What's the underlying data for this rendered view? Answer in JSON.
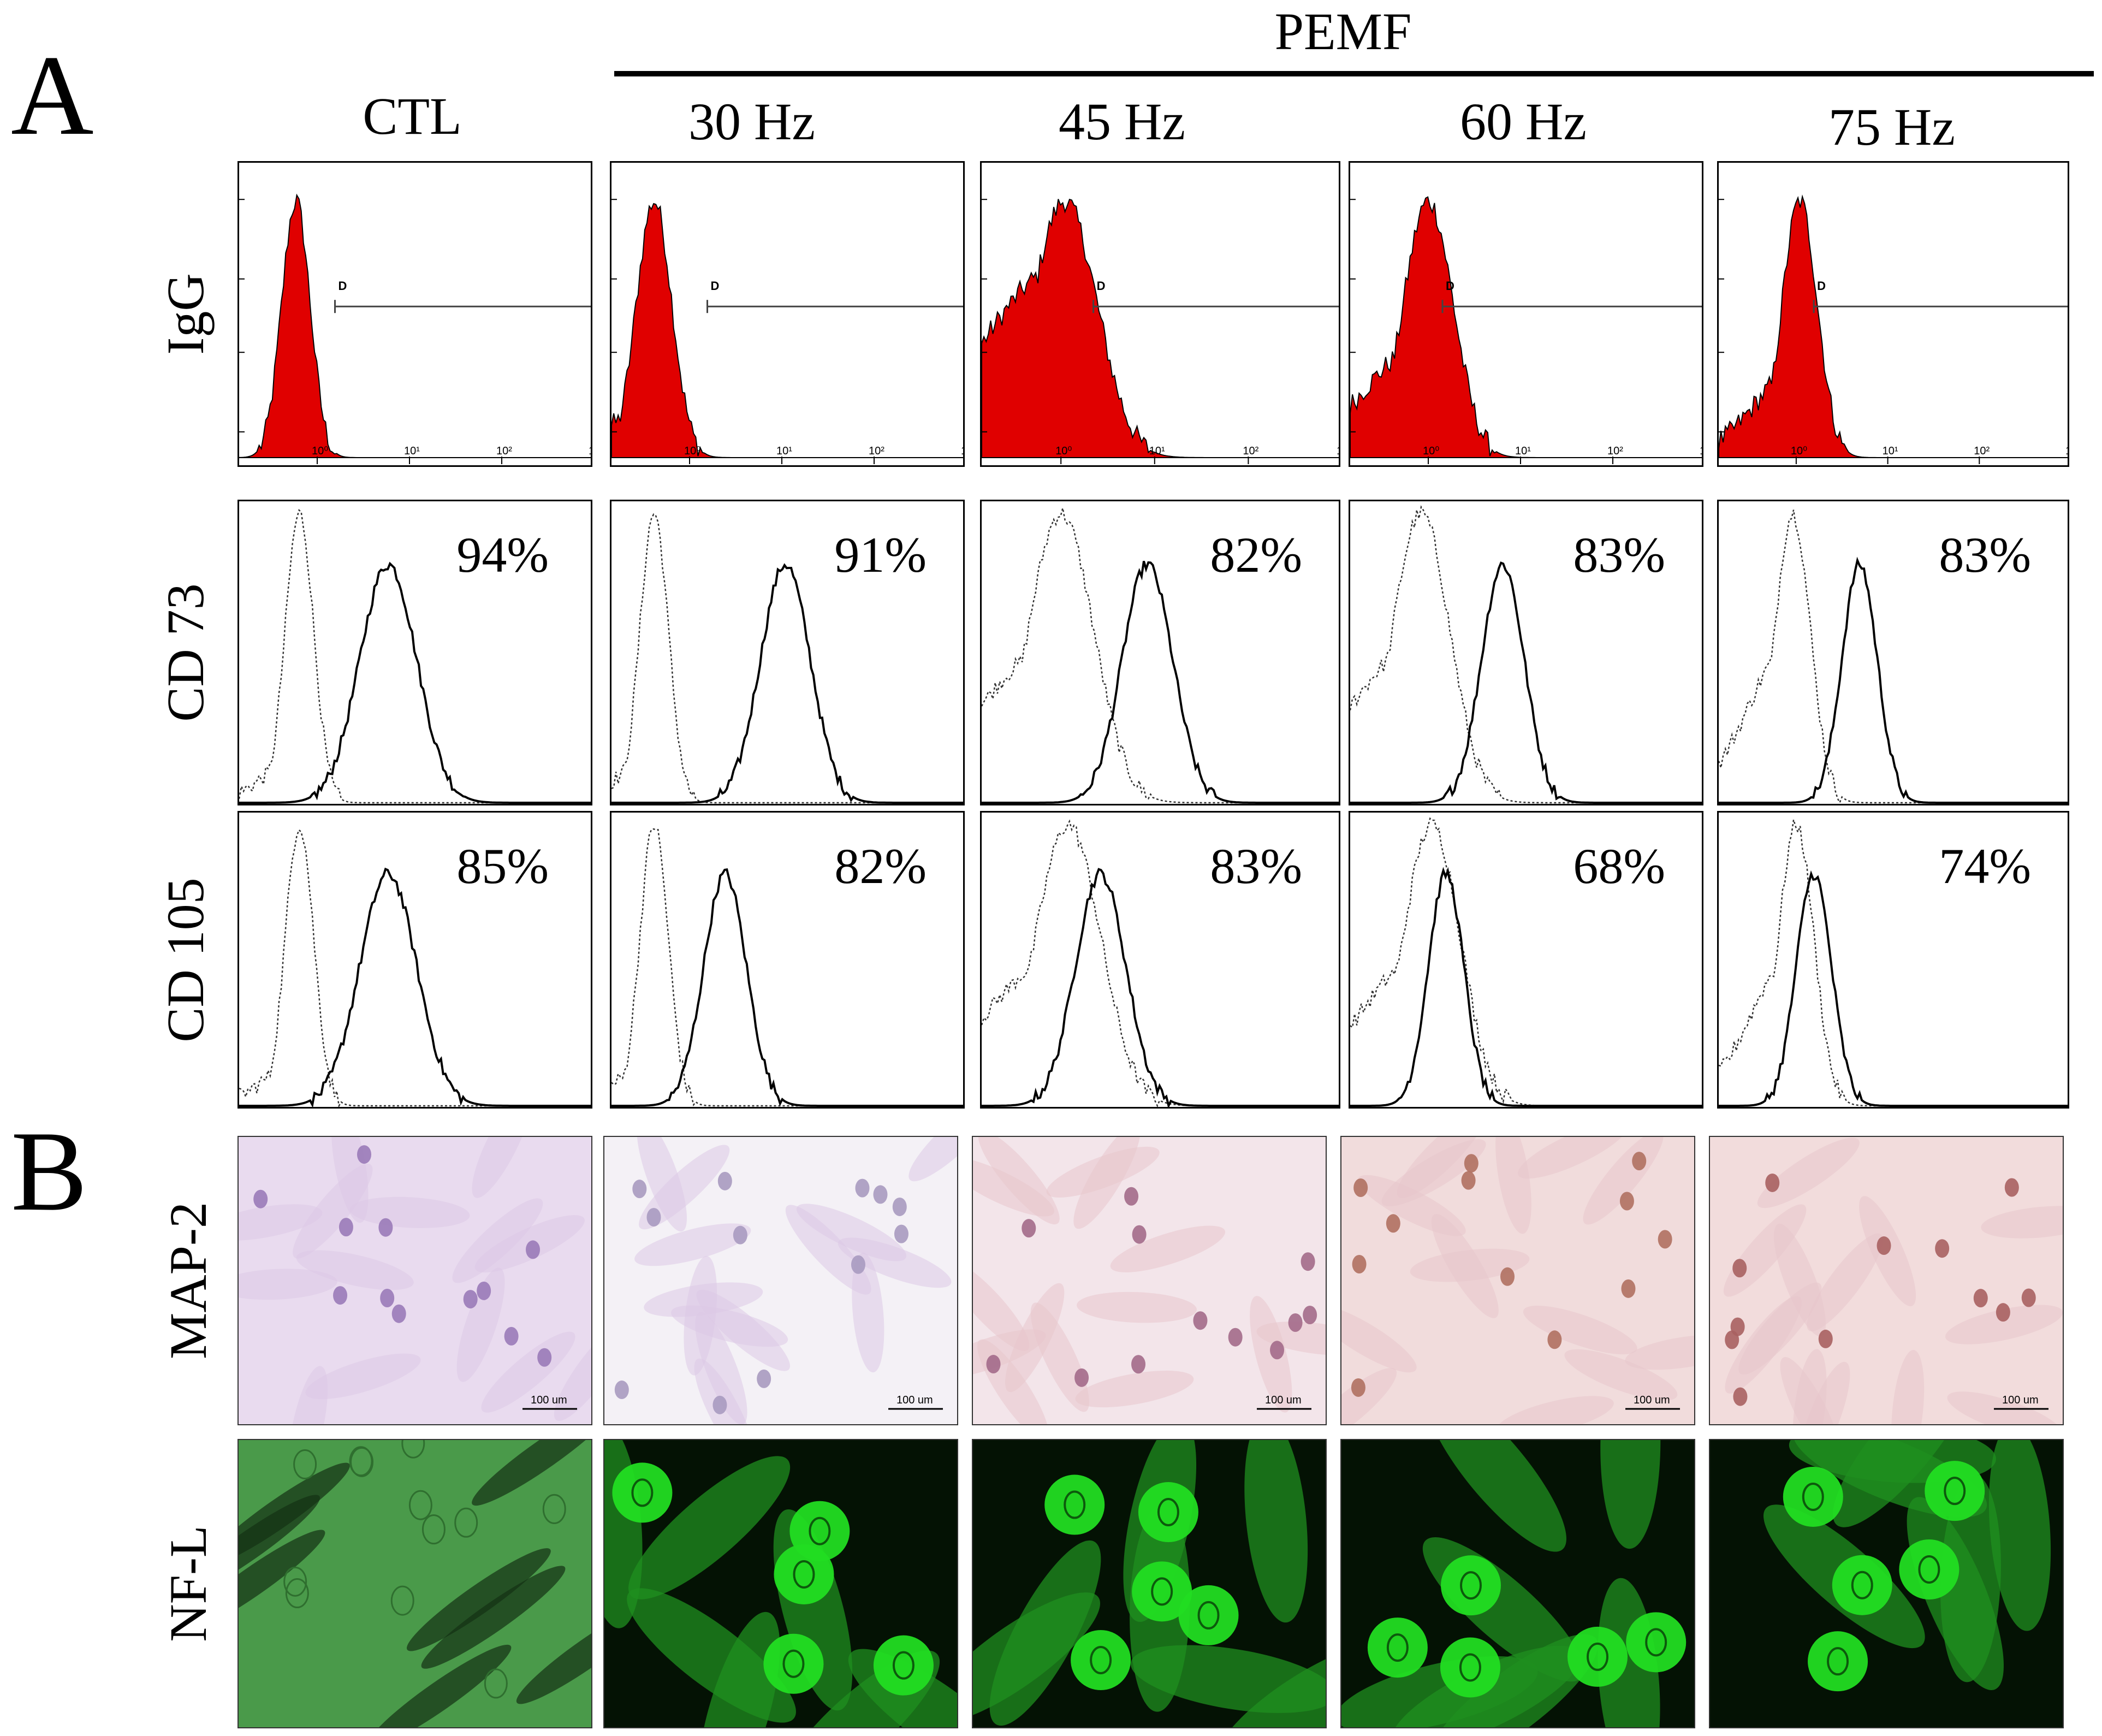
{
  "panel_a": {
    "letter": "A",
    "group_label": "PEMF",
    "columns": [
      "CTL",
      "30 Hz",
      "45 Hz",
      "60 Hz",
      "75 Hz"
    ],
    "rows": [
      "IgG",
      "CD 73",
      "CD 105"
    ],
    "igg_gate_label": "D",
    "igg_axis_ticks": [
      "10⁰",
      "10¹",
      "10²",
      "10³"
    ],
    "percent": {
      "cd73": [
        "94%",
        "91%",
        "82%",
        "83%",
        "83%"
      ],
      "cd105": [
        "85%",
        "82%",
        "83%",
        "68%",
        "74%"
      ]
    }
  },
  "panel_b": {
    "letter": "B",
    "rows": [
      "MAP-2",
      "NF-L"
    ],
    "scale_bar_label": "100 um"
  },
  "colors": {
    "histogram_fill": "#e00000",
    "nfl_green": "#22dd22",
    "map2_background": "#f4ecf1"
  },
  "chart_data": [
    {
      "type": "area",
      "title": "",
      "xlabel": "",
      "ylabel": "IgG",
      "panel": "CTL",
      "x_scale": "log"
    },
    {
      "type": "area",
      "title": "",
      "xlabel": "",
      "ylabel": "IgG",
      "panel": "30 Hz",
      "x_scale": "log"
    },
    {
      "type": "area",
      "title": "",
      "xlabel": "",
      "ylabel": "IgG",
      "panel": "45 Hz",
      "x_scale": "log"
    },
    {
      "type": "area",
      "title": "",
      "xlabel": "",
      "ylabel": "IgG",
      "panel": "60 Hz",
      "x_scale": "log"
    },
    {
      "type": "area",
      "title": "",
      "xlabel": "",
      "ylabel": "IgG",
      "panel": "75 Hz",
      "x_scale": "log"
    },
    {
      "type": "line",
      "ylabel": "CD 73",
      "panels": [
        "CTL",
        "30 Hz",
        "45 Hz",
        "60 Hz",
        "75 Hz"
      ],
      "positive_percent": [
        94,
        91,
        82,
        83,
        83
      ]
    },
    {
      "type": "line",
      "ylabel": "CD 105",
      "panels": [
        "CTL",
        "30 Hz",
        "45 Hz",
        "60 Hz",
        "75 Hz"
      ],
      "positive_percent": [
        85,
        82,
        83,
        68,
        74
      ]
    }
  ]
}
